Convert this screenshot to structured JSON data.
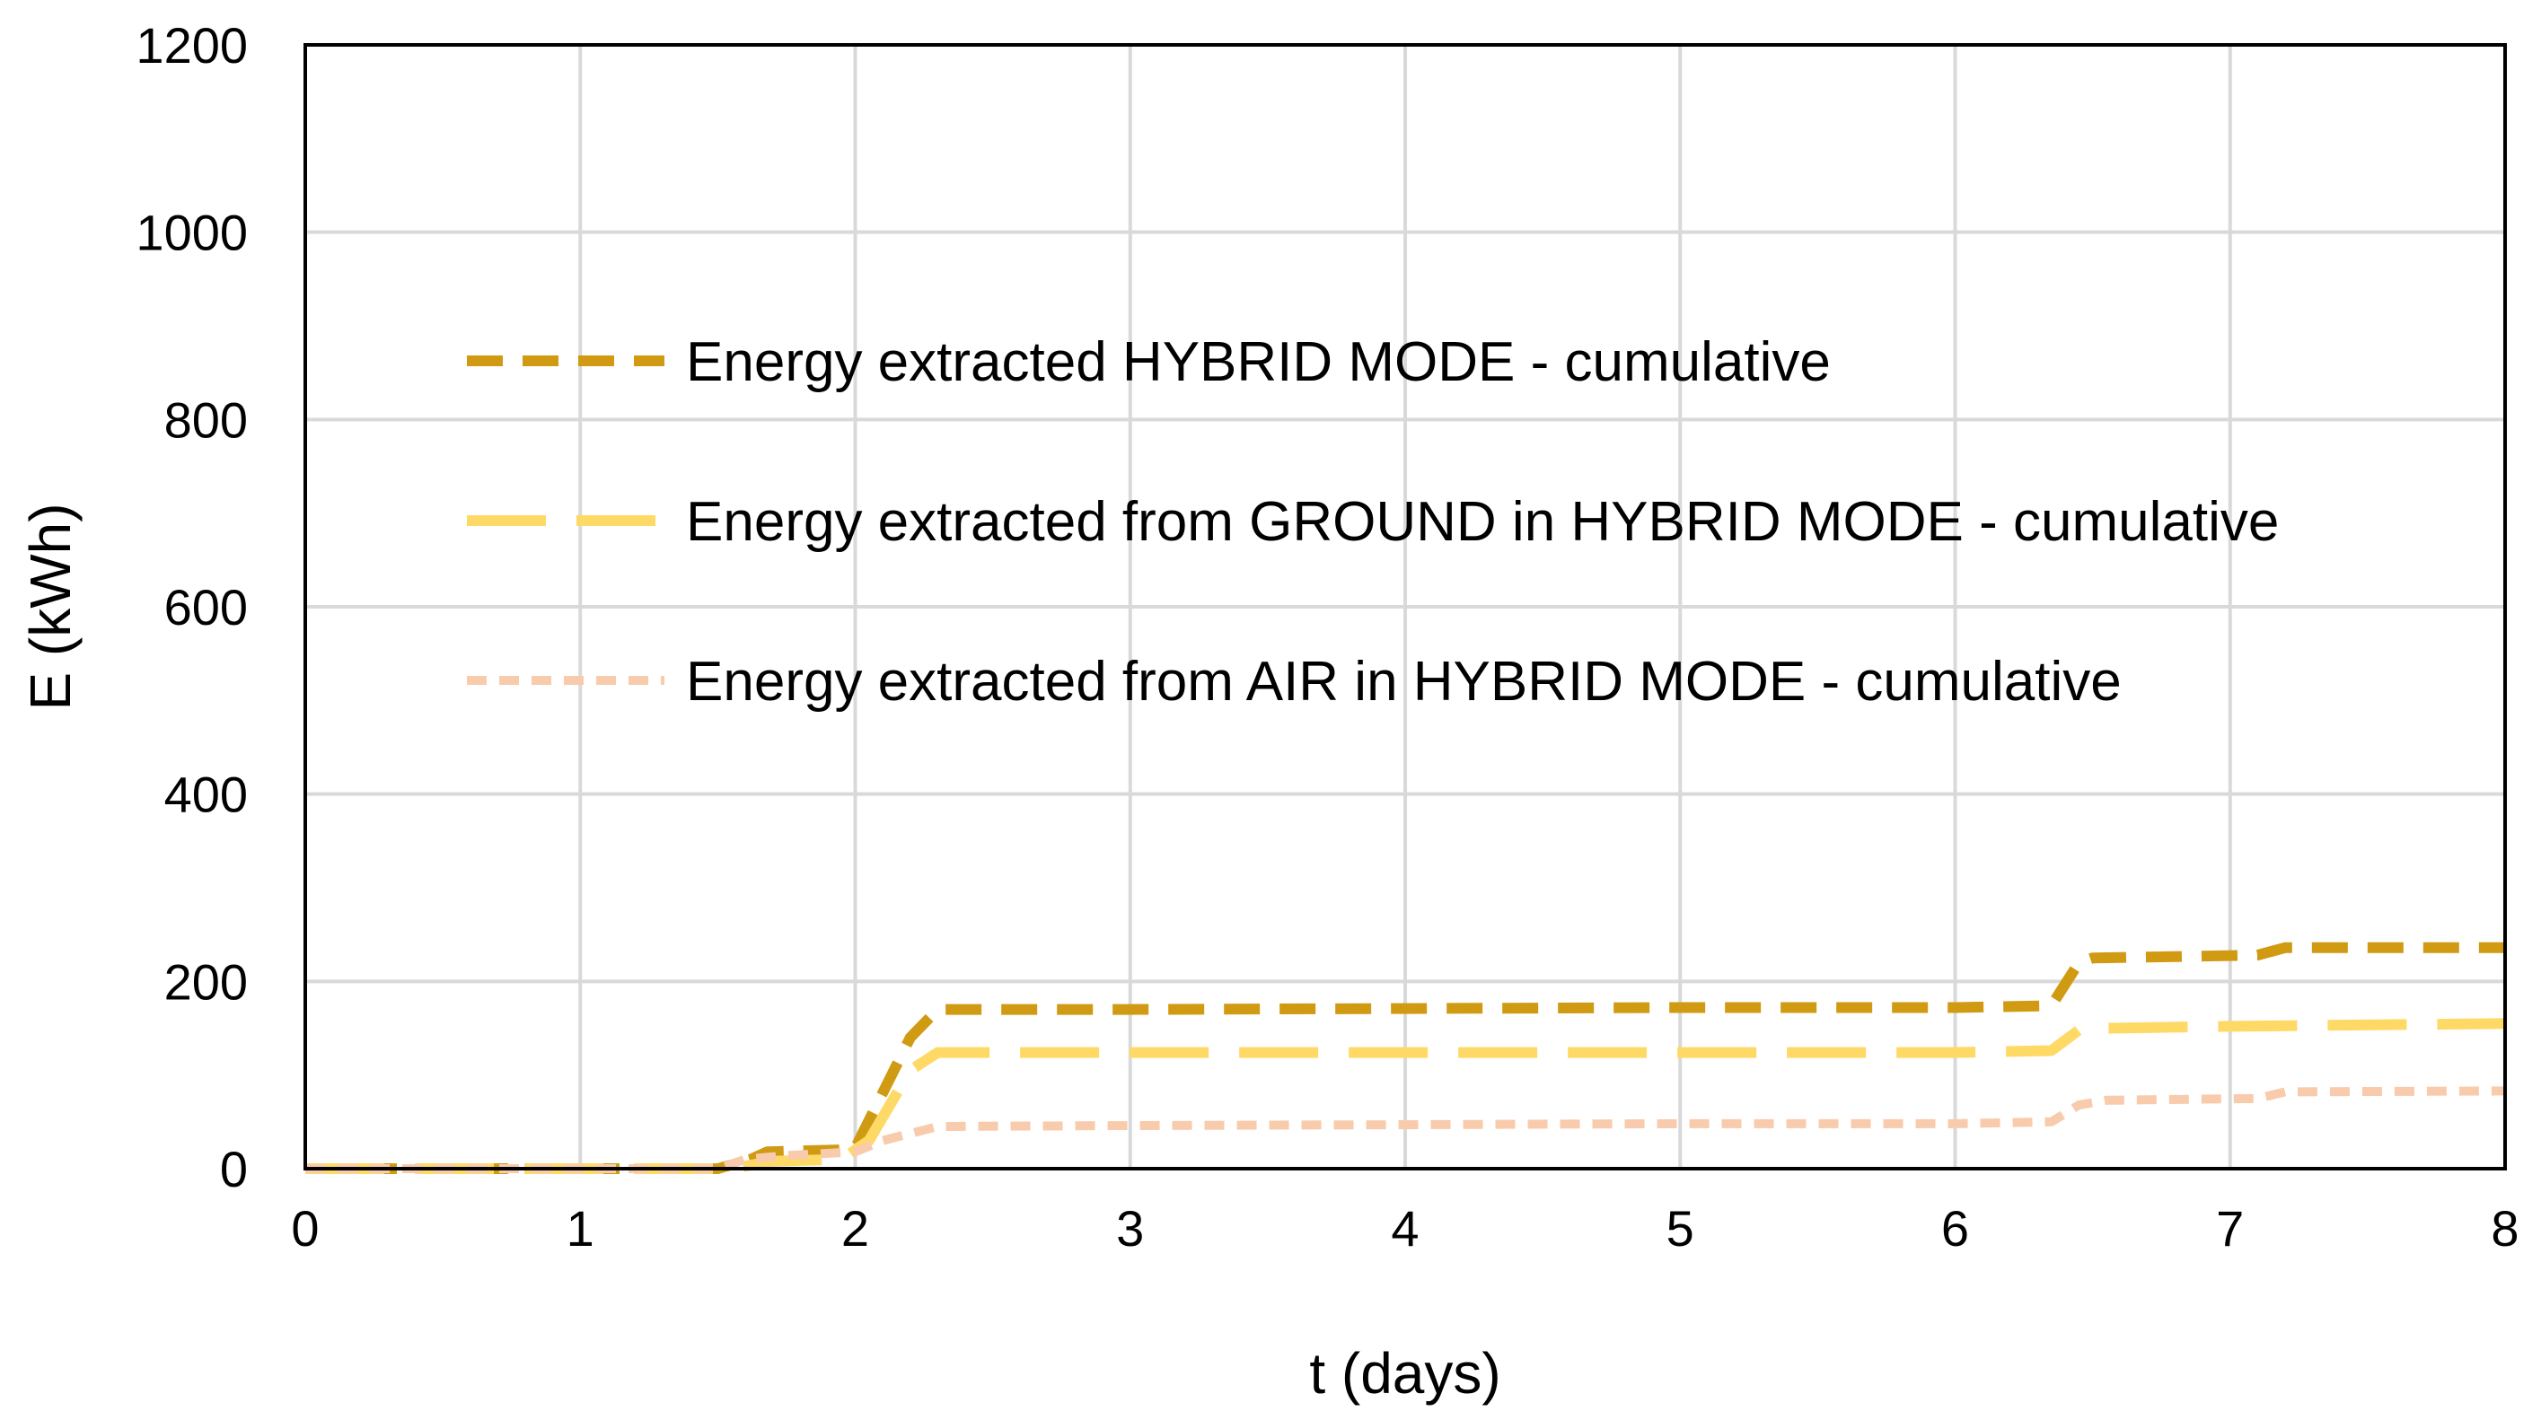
{
  "chart_data": {
    "type": "line",
    "xlabel": "t (days)",
    "ylabel": "E (kWh)",
    "xlim": [
      0,
      8
    ],
    "ylim": [
      0,
      1200
    ],
    "xticks": [
      "0",
      "1",
      "2",
      "3",
      "4",
      "5",
      "6",
      "7",
      "8"
    ],
    "yticks": [
      "0",
      "200",
      "400",
      "600",
      "800",
      "1000",
      "1200"
    ],
    "grid": true,
    "legend_position": "upper-center",
    "series": [
      {
        "name": "Energy extracted HYBRID MODE - cumulative",
        "color": "#D09A12",
        "dash": "dashed",
        "points": [
          [
            0,
            0
          ],
          [
            1.5,
            0
          ],
          [
            1.62,
            10
          ],
          [
            1.68,
            18
          ],
          [
            1.95,
            20
          ],
          [
            2.0,
            22
          ],
          [
            2.2,
            140
          ],
          [
            2.3,
            170
          ],
          [
            3.0,
            170
          ],
          [
            4.0,
            171
          ],
          [
            5.0,
            172
          ],
          [
            6.0,
            172
          ],
          [
            6.35,
            174
          ],
          [
            6.45,
            220
          ],
          [
            6.5,
            225
          ],
          [
            7.1,
            228
          ],
          [
            7.2,
            236
          ],
          [
            8.0,
            236
          ]
        ]
      },
      {
        "name": "Energy extracted from GROUND in HYBRID MODE - cumulative",
        "color": "#FFD966",
        "dash": "long-dash",
        "points": [
          [
            0,
            0
          ],
          [
            1.55,
            0
          ],
          [
            1.7,
            8
          ],
          [
            1.95,
            10
          ],
          [
            2.05,
            30
          ],
          [
            2.2,
            105
          ],
          [
            2.3,
            124
          ],
          [
            3.0,
            124
          ],
          [
            4.0,
            124
          ],
          [
            5.0,
            124
          ],
          [
            6.0,
            124
          ],
          [
            6.35,
            126
          ],
          [
            6.45,
            148
          ],
          [
            6.55,
            150
          ],
          [
            7.0,
            152
          ],
          [
            8.0,
            155
          ]
        ]
      },
      {
        "name": "Energy extracted from AIR in HYBRID MODE - cumulative",
        "color": "#F8CBAD",
        "dash": "dotted",
        "points": [
          [
            0,
            0
          ],
          [
            1.5,
            0
          ],
          [
            1.6,
            10
          ],
          [
            1.75,
            14
          ],
          [
            2.0,
            18
          ],
          [
            2.1,
            30
          ],
          [
            2.3,
            45
          ],
          [
            3.0,
            46
          ],
          [
            4.0,
            47
          ],
          [
            5.0,
            48
          ],
          [
            6.0,
            48
          ],
          [
            6.35,
            50
          ],
          [
            6.45,
            68
          ],
          [
            6.55,
            73
          ],
          [
            7.1,
            75
          ],
          [
            7.2,
            82
          ],
          [
            8.0,
            83
          ]
        ]
      }
    ]
  }
}
